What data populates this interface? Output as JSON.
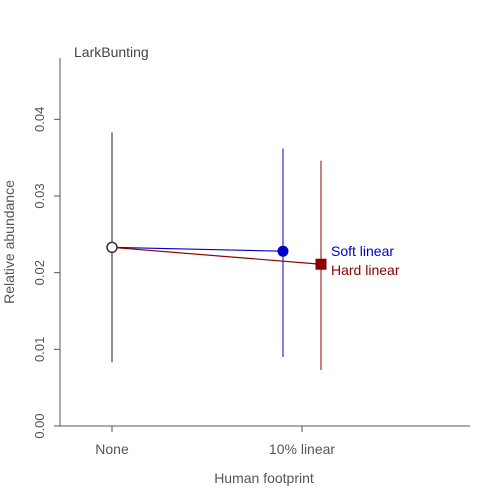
{
  "chart_data": {
    "type": "scatter",
    "title": "LarkBunting",
    "xlabel": "Human footprint",
    "ylabel": "Relative abundance",
    "categories": [
      "None",
      "10% linear"
    ],
    "ylim": [
      0,
      0.048
    ],
    "yticks": [
      {
        "value": 0.0,
        "label": "0.00"
      },
      {
        "value": 0.01,
        "label": "0.01"
      },
      {
        "value": 0.02,
        "label": "0.02"
      },
      {
        "value": 0.03,
        "label": "0.03"
      },
      {
        "value": 0.04,
        "label": "0.04"
      }
    ],
    "reference": {
      "category": "None",
      "value": 0.0233,
      "lower": 0.0083,
      "upper": 0.0383,
      "color": "#333333"
    },
    "series": [
      {
        "name": "Soft linear",
        "color": "#0000c8",
        "marker": "circle",
        "offset": -0.1,
        "category": "10% linear",
        "value": 0.0228,
        "lower": 0.009,
        "upper": 0.0362
      },
      {
        "name": "Hard linear",
        "color": "#8b0000",
        "marker": "square",
        "offset": 0.1,
        "category": "10% linear",
        "value": 0.0211,
        "lower": 0.0073,
        "upper": 0.0346
      }
    ],
    "grid": false,
    "legend": "right"
  }
}
